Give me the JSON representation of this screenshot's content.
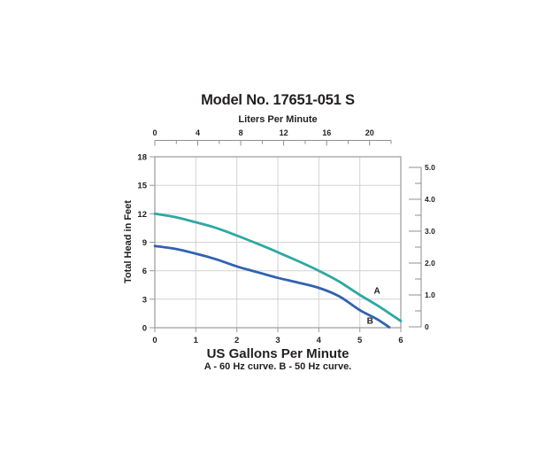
{
  "chart_data": {
    "type": "line",
    "title": "Model No. 17651-051 S",
    "caption": "A - 60 Hz curve. B - 50 Hz curve.",
    "grid": true,
    "top_axis": {
      "label": "Liters Per Minute",
      "ticks": [
        0,
        4,
        8,
        12,
        16,
        20
      ],
      "minor_step": 2,
      "range": [
        0,
        22
      ]
    },
    "x_axis": {
      "label": "US Gallons Per Minute",
      "ticks": [
        0,
        1,
        2,
        3,
        4,
        5,
        6
      ],
      "range": [
        0,
        6
      ]
    },
    "y_axis": {
      "label": "Total Head in Feet",
      "ticks": [
        0,
        3,
        6,
        9,
        12,
        15,
        18
      ],
      "range": [
        0,
        18
      ]
    },
    "right_axis": {
      "tick_labels": [
        "0",
        "1.0",
        "2.0",
        "3.0",
        "4.0",
        "5.0"
      ],
      "tick_values": [
        0,
        1,
        2,
        3,
        4,
        5
      ],
      "minor_step": 0.5,
      "range": [
        0,
        5
      ]
    },
    "series": [
      {
        "name": "A",
        "description": "60 Hz curve",
        "color": "#2ea8a3",
        "label_at": [
          5.42,
          3.9
        ],
        "points": [
          [
            0,
            12.0
          ],
          [
            0.5,
            11.65
          ],
          [
            1,
            11.1
          ],
          [
            1.5,
            10.5
          ],
          [
            2,
            9.7
          ],
          [
            2.5,
            8.85
          ],
          [
            3,
            7.95
          ],
          [
            3.5,
            7.0
          ],
          [
            4,
            6.0
          ],
          [
            4.5,
            4.85
          ],
          [
            5,
            3.45
          ],
          [
            5.5,
            2.15
          ],
          [
            6,
            0.7
          ]
        ]
      },
      {
        "name": "B",
        "description": "50 Hz curve",
        "color": "#3162af",
        "label_at": [
          5.25,
          0.75
        ],
        "points": [
          [
            0,
            8.6
          ],
          [
            0.5,
            8.3
          ],
          [
            1,
            7.8
          ],
          [
            1.5,
            7.2
          ],
          [
            2,
            6.45
          ],
          [
            2.5,
            5.85
          ],
          [
            3,
            5.25
          ],
          [
            3.5,
            4.75
          ],
          [
            4,
            4.2
          ],
          [
            4.5,
            3.3
          ],
          [
            5,
            1.85
          ],
          [
            5.4,
            0.95
          ],
          [
            5.72,
            0.05
          ]
        ]
      }
    ],
    "colors": {
      "grid": "#d2d2d2",
      "frame": "#9a9a9a",
      "ruler": "#8f8f8f",
      "text": "#231f20"
    }
  }
}
